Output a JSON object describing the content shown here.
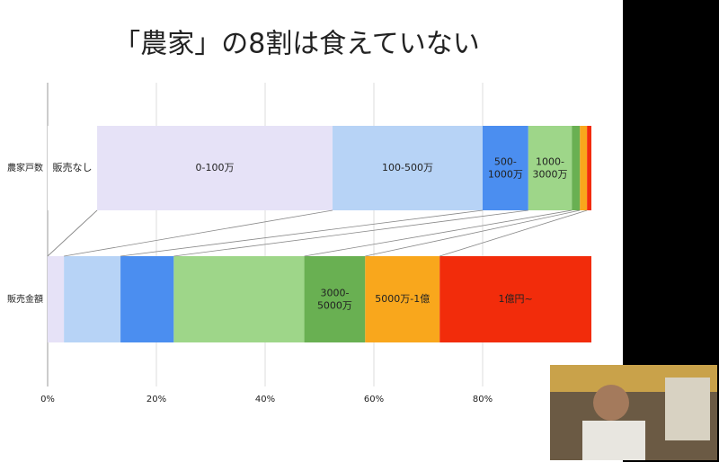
{
  "chart_data": {
    "type": "stacked-barh",
    "title": "「農家」の8割は食えていない",
    "categories": [
      "農家戸数",
      "販売金額"
    ],
    "series": [
      {
        "name": "販売なし",
        "color": "#ffffff",
        "values": [
          9.1,
          0
        ]
      },
      {
        "name": "0-100万",
        "color": "#e6e2f7",
        "values": [
          43.3,
          3.0
        ]
      },
      {
        "name": "100-500万",
        "color": "#b7d3f6",
        "values": [
          27.6,
          10.4
        ]
      },
      {
        "name": "500-1000万",
        "color": "#4b8ef0",
        "values": [
          8.4,
          9.8
        ]
      },
      {
        "name": "1000-3000万",
        "color": "#9ed689",
        "values": [
          8.0,
          24.0
        ]
      },
      {
        "name": "3000-5000万",
        "color": "#69b052",
        "values": [
          1.5,
          11.2
        ]
      },
      {
        "name": "5000万-1億",
        "color": "#f9a71c",
        "values": [
          1.3,
          13.7
        ]
      },
      {
        "name": "1億円~",
        "color": "#f22c0b",
        "values": [
          0.8,
          27.9
        ]
      }
    ],
    "xlim": [
      0,
      100
    ],
    "xticks": [
      {
        "value": 0,
        "label": "0%"
      },
      {
        "value": 20,
        "label": "20%"
      },
      {
        "value": 40,
        "label": "40%"
      },
      {
        "value": 60,
        "label": "60%"
      },
      {
        "value": 80,
        "label": "80%"
      }
    ],
    "grid": true
  }
}
